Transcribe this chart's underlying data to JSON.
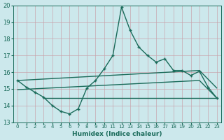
{
  "xlabel": "Humidex (Indice chaleur)",
  "x_values": [
    0,
    1,
    2,
    3,
    4,
    5,
    6,
    7,
    8,
    9,
    10,
    11,
    12,
    13,
    14,
    15,
    16,
    17,
    18,
    19,
    20,
    21,
    22,
    23
  ],
  "curve_y": [
    15.5,
    15.1,
    14.8,
    14.5,
    14.0,
    13.65,
    13.5,
    13.8,
    15.05,
    15.5,
    16.2,
    17.0,
    19.9,
    18.5,
    17.5,
    17.0,
    16.6,
    16.8,
    16.1,
    16.1,
    15.8,
    16.05,
    15.1,
    14.45
  ],
  "upper_line_x": [
    0,
    21,
    23
  ],
  "upper_line_y": [
    15.5,
    16.1,
    15.05
  ],
  "mid_line_x": [
    0,
    21,
    23
  ],
  "mid_line_y": [
    14.95,
    15.5,
    14.45
  ],
  "flat_line_x": [
    3,
    21,
    23
  ],
  "flat_line_y": [
    14.45,
    14.45,
    14.45
  ],
  "xlim": [
    -0.5,
    23.5
  ],
  "ylim": [
    13,
    20
  ],
  "yticks": [
    13,
    14,
    15,
    16,
    17,
    18,
    19,
    20
  ],
  "bg_color": "#cce8ec",
  "grid_color_major": "#bbdde0",
  "grid_color_minor": "#d0e8ea",
  "line_color": "#1a6b5a",
  "line_width": 1.0,
  "marker_size": 3.5
}
